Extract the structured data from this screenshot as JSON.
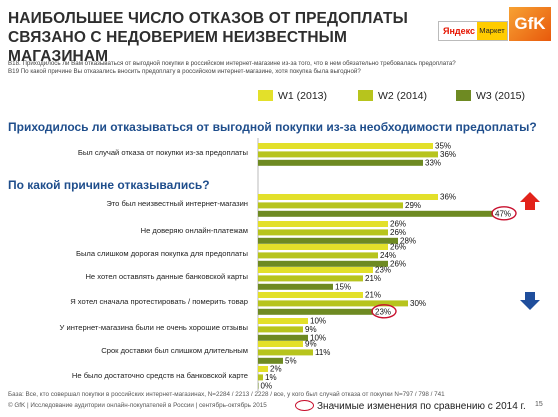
{
  "header": {
    "title_line1": "НАИБОЛЬШЕЕ ЧИСЛО ОТКАЗОВ ОТ ПРЕДОПЛАТЫ",
    "title_line2": "СВЯЗАНО С НЕДОВЕРИЕМ НЕИЗВЕСТНЫМ МАГАЗИНАМ",
    "logo_yandex": "Яндекс",
    "logo_market": "Маркет",
    "logo_gfk": "GfK"
  },
  "questions": {
    "b18": "B18. Приходилось ли Вам отказываться от выгодной покупки в российском интернет-магазине из-за того, что в нем обязательно требовалась предоплата?",
    "b19": "B19 По какой причине Вы отказались вносить предоплату в российском интернет-магазине, хотя покупка была выгодной?"
  },
  "legend": [
    {
      "label": "W1 (2013)",
      "color": "#e3e02a"
    },
    {
      "label": "W2 (2014)",
      "color": "#b7c41d"
    },
    {
      "label": "W3 (2015)",
      "color": "#6e8a22"
    }
  ],
  "sections": {
    "s1": "Приходилось ли отказываться от выгодной покупки из-за необходимости предоплаты?",
    "s2": "По какой причине отказывались?"
  },
  "chart_data": {
    "type": "bar",
    "orientation": "horizontal",
    "series": [
      {
        "name": "W1 (2013)",
        "color": "#e3e02a",
        "values": [
          35,
          36,
          26,
          26,
          23,
          21,
          10,
          9,
          2
        ]
      },
      {
        "name": "W2 (2014)",
        "color": "#b7c41d",
        "values": [
          36,
          29,
          26,
          24,
          21,
          30,
          9,
          11,
          1
        ]
      },
      {
        "name": "W3 (2015)",
        "color": "#6e8a22",
        "values": [
          33,
          47,
          28,
          26,
          15,
          23,
          10,
          5,
          0
        ]
      }
    ],
    "categories": [
      "Был случай отказа от покупки из-за предоплаты",
      "Это был неизвестный интернет-магазин",
      "Не доверяю онлайн-платежам",
      "Была слишком дорогая покупка для предоплаты",
      "Не хотел оставлять данные банковской карты",
      "Я хотел сначала протестировать / померить товар",
      "У интернет-магазина были не очень хорошие отзывы",
      "Срок доставки был слишком длительным",
      "Не было достаточно средств на банковской карте"
    ],
    "value_suffix": "%",
    "highlighted": [
      {
        "category_index": 1,
        "series_index": 2,
        "trend": "up"
      },
      {
        "category_index": 5,
        "series_index": 2,
        "trend": "down"
      }
    ],
    "xlim": [
      0,
      50
    ]
  },
  "footer": {
    "base": "База: Все, кто совершал покупки в российских интернет-магазинах, N=2284 / 2213 / 2228 / все, у кого был случай отказа от покупки N=797 / 798 / 741",
    "copyright": "© GfK | Исследование аудитории онлайн-покупателей в России | сентябрь-октябрь 2015",
    "significance": "Значимые изменения по сравнению с 2014 г.",
    "page": "15"
  }
}
